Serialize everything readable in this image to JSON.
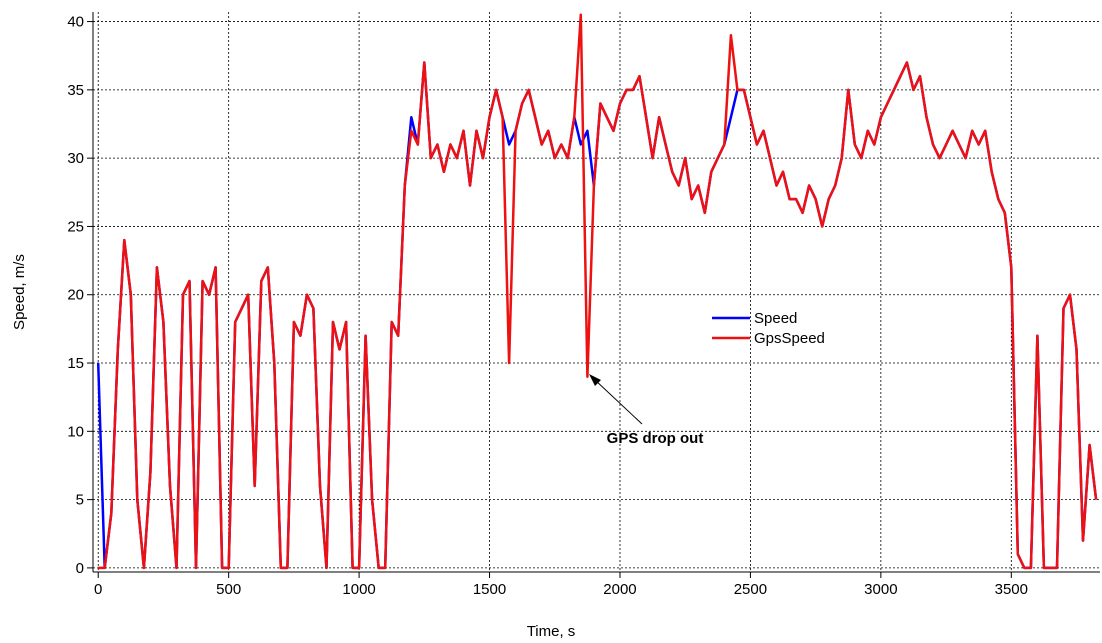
{
  "chart_data": {
    "type": "line",
    "xlabel": "Time, s",
    "ylabel": "Speed, m/s",
    "annotation": "GPS drop out",
    "x": [
      0,
      25,
      50,
      75,
      100,
      125,
      150,
      175,
      200,
      225,
      250,
      275,
      300,
      325,
      350,
      375,
      400,
      425,
      450,
      475,
      500,
      525,
      550,
      575,
      600,
      625,
      650,
      675,
      700,
      725,
      750,
      775,
      800,
      825,
      850,
      875,
      900,
      925,
      950,
      975,
      1000,
      1025,
      1050,
      1075,
      1100,
      1125,
      1150,
      1175,
      1200,
      1225,
      1250,
      1275,
      1300,
      1325,
      1350,
      1375,
      1400,
      1425,
      1450,
      1475,
      1500,
      1525,
      1550,
      1575,
      1600,
      1625,
      1650,
      1675,
      1700,
      1725,
      1750,
      1775,
      1800,
      1825,
      1850,
      1875,
      1900,
      1925,
      1950,
      1975,
      2000,
      2025,
      2050,
      2075,
      2100,
      2125,
      2150,
      2175,
      2200,
      2225,
      2250,
      2275,
      2300,
      2325,
      2350,
      2375,
      2400,
      2425,
      2450,
      2475,
      2500,
      2525,
      2550,
      2575,
      2600,
      2625,
      2650,
      2675,
      2700,
      2725,
      2750,
      2775,
      2800,
      2825,
      2850,
      2875,
      2900,
      2925,
      2950,
      2975,
      3000,
      3025,
      3050,
      3075,
      3100,
      3125,
      3150,
      3175,
      3200,
      3225,
      3250,
      3275,
      3300,
      3325,
      3350,
      3375,
      3400,
      3425,
      3450,
      3475,
      3500,
      3525,
      3550,
      3575,
      3600,
      3625,
      3650,
      3675,
      3700,
      3725,
      3750,
      3775,
      3800,
      3825
    ],
    "series": [
      {
        "name": "Speed",
        "color": "#0000ff",
        "values": [
          15,
          0,
          4,
          16,
          24,
          20,
          5,
          0,
          7,
          22,
          18,
          6,
          0,
          20,
          21,
          0,
          21,
          20,
          22,
          0,
          0,
          18,
          19,
          20,
          6,
          21,
          22,
          15,
          0,
          0,
          18,
          17,
          20,
          19,
          6,
          0,
          18,
          16,
          18,
          0,
          0,
          17,
          5,
          0,
          0,
          18,
          17,
          28,
          33,
          31,
          37,
          30,
          31,
          29,
          31,
          30,
          32,
          28,
          32,
          30,
          33,
          35,
          33,
          31,
          32,
          34,
          35,
          33,
          31,
          32,
          30,
          31,
          30,
          33,
          31,
          32,
          28,
          34,
          33,
          32,
          34,
          35,
          35,
          36,
          33,
          30,
          33,
          31,
          29,
          28,
          30,
          27,
          28,
          26,
          29,
          30,
          31,
          33,
          35,
          35,
          33,
          31,
          32,
          30,
          28,
          29,
          27,
          27,
          26,
          28,
          27,
          25,
          27,
          28,
          30,
          35,
          31,
          30,
          32,
          31,
          33,
          34,
          35,
          36,
          37,
          35,
          36,
          33,
          31,
          30,
          31,
          32,
          31,
          30,
          32,
          31,
          32,
          29,
          27,
          26,
          22,
          1,
          0,
          0,
          17,
          0,
          0,
          0,
          19,
          20,
          16,
          2,
          9,
          5
        ]
      },
      {
        "name": "GpsSpeed",
        "color": "#ee1111",
        "values": [
          0,
          0,
          4,
          16,
          24,
          20,
          5,
          0,
          7,
          22,
          18,
          6,
          0,
          20,
          21,
          0,
          21,
          20,
          22,
          0,
          0,
          18,
          19,
          20,
          6,
          21,
          22,
          15,
          0,
          0,
          18,
          17,
          20,
          19,
          6,
          0,
          18,
          16,
          18,
          0,
          0,
          17,
          5,
          0,
          0,
          18,
          17,
          28,
          32,
          31,
          37,
          30,
          31,
          29,
          31,
          30,
          32,
          28,
          32,
          30,
          33,
          35,
          33,
          15,
          32,
          34,
          35,
          33,
          31,
          32,
          30,
          31,
          30,
          33,
          40.5,
          14,
          28,
          34,
          33,
          32,
          34,
          35,
          35,
          36,
          33,
          30,
          33,
          31,
          29,
          28,
          30,
          27,
          28,
          26,
          29,
          30,
          31,
          39,
          35,
          35,
          33,
          31,
          32,
          30,
          28,
          29,
          27,
          27,
          26,
          28,
          27,
          25,
          27,
          28,
          30,
          35,
          31,
          30,
          32,
          31,
          33,
          34,
          35,
          36,
          37,
          35,
          36,
          33,
          31,
          30,
          31,
          32,
          31,
          30,
          32,
          31,
          32,
          29,
          27,
          26,
          22,
          1,
          0,
          0,
          17,
          0,
          0,
          0,
          19,
          20,
          16,
          2,
          9,
          5
        ]
      }
    ],
    "xlim": [
      -20,
      3840
    ],
    "ylim": [
      -0.3,
      40.7
    ],
    "xticks": [
      0,
      500,
      1000,
      1500,
      2000,
      2500,
      3000,
      3500
    ],
    "yticks": [
      0,
      5,
      10,
      15,
      20,
      25,
      30,
      35,
      40
    ],
    "grid": true,
    "legend": "center-right"
  }
}
